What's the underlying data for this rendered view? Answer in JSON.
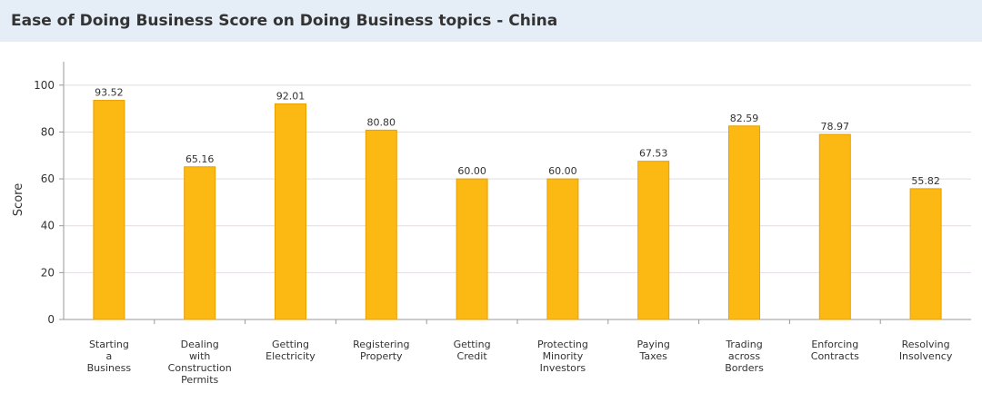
{
  "header": {
    "title": "Ease of Doing Business Score on Doing Business topics - China"
  },
  "chart_data": {
    "type": "bar",
    "title": "Ease of Doing Business Score on Doing Business topics - China",
    "xlabel": "",
    "ylabel": "Score",
    "ylim": [
      0,
      110
    ],
    "yticks": [
      0,
      20,
      40,
      60,
      80,
      100
    ],
    "grid": true,
    "legend": "none",
    "bar_color": "#fcb813",
    "bar_stroke": "#e8a000",
    "categories": [
      [
        "Starting",
        "a",
        "Business"
      ],
      [
        "Dealing",
        "with",
        "Construction",
        "Permits"
      ],
      [
        "Getting",
        "Electricity"
      ],
      [
        "Registering",
        "Property"
      ],
      [
        "Getting",
        "Credit"
      ],
      [
        "Protecting",
        "Minority",
        "Investors"
      ],
      [
        "Paying",
        "Taxes"
      ],
      [
        "Trading",
        "across",
        "Borders"
      ],
      [
        "Enforcing",
        "Contracts"
      ],
      [
        "Resolving",
        "Insolvency"
      ]
    ],
    "values": [
      93.52,
      65.16,
      92.01,
      80.8,
      60.0,
      60.0,
      67.53,
      82.59,
      78.97,
      55.82
    ],
    "value_labels": [
      "93.52",
      "65.16",
      "92.01",
      "80.80",
      "60.00",
      "60.00",
      "67.53",
      "82.59",
      "78.97",
      "55.82"
    ]
  }
}
